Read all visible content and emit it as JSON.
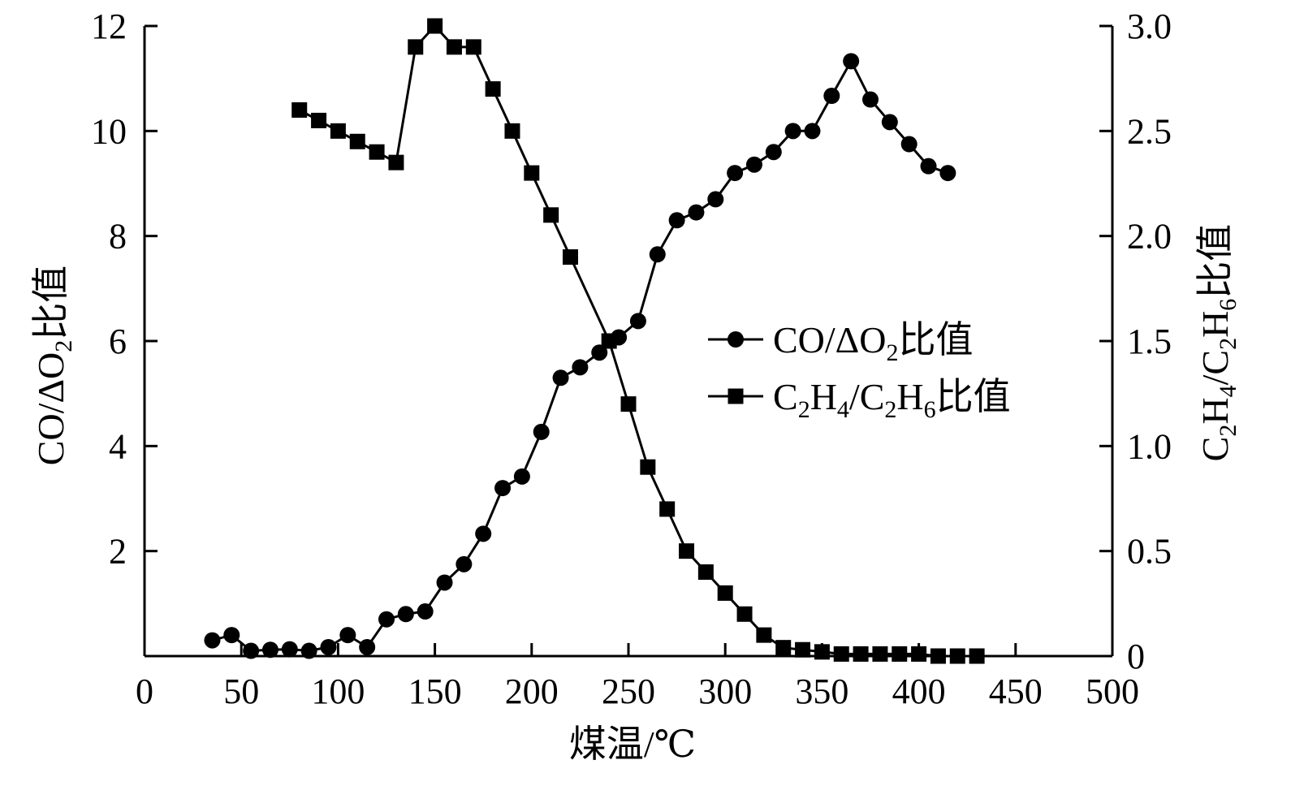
{
  "chart_data": {
    "type": "line",
    "xlabel": "煤温/℃",
    "ylabel_left": {
      "main": "CO/ΔO",
      "sub": "2",
      "tail": "比值"
    },
    "ylabel_right": {
      "parts": [
        [
          "C",
          ""
        ],
        [
          "2",
          "sub"
        ],
        [
          "H",
          ""
        ],
        [
          "4",
          "sub"
        ],
        [
          "/C",
          ""
        ],
        [
          "2",
          "sub"
        ],
        [
          "H",
          ""
        ],
        [
          "6",
          "sub"
        ],
        [
          "比值",
          ""
        ]
      ]
    },
    "xlim": [
      0,
      500
    ],
    "ylim_left": [
      0,
      12
    ],
    "ylim_right": [
      0,
      3.0
    ],
    "x_ticks": [
      "0",
      "50",
      "100",
      "150",
      "200",
      "250",
      "300",
      "350",
      "400",
      "450",
      "500"
    ],
    "y_ticks_left": [
      "2",
      "4",
      "6",
      "8",
      "10",
      "12"
    ],
    "y_ticks_right": [
      "0",
      "0.5",
      "1.0",
      "1.5",
      "2.0",
      "2.5",
      "3.0"
    ],
    "grid": false,
    "legend_position": "center-right",
    "series": [
      {
        "name": "CO/ΔO2比值",
        "legend_parts": [
          [
            "CO/ΔO",
            ""
          ],
          [
            "2",
            "sub"
          ],
          [
            "比值",
            ""
          ]
        ],
        "axis": "left",
        "marker": "circle",
        "x": [
          35,
          45,
          55,
          65,
          75,
          85,
          95,
          105,
          115,
          125,
          135,
          145,
          155,
          165,
          175,
          185,
          195,
          205,
          215,
          225,
          235,
          245,
          255,
          265,
          275,
          285,
          295,
          305,
          315,
          325,
          335,
          345,
          355,
          365,
          375,
          385,
          395,
          405,
          415
        ],
        "values": [
          0.3,
          0.4,
          0.1,
          0.12,
          0.13,
          0.1,
          0.17,
          0.4,
          0.17,
          0.7,
          0.8,
          0.85,
          1.4,
          1.75,
          2.33,
          3.2,
          3.42,
          4.27,
          5.3,
          5.5,
          5.78,
          6.07,
          6.38,
          7.65,
          8.3,
          8.45,
          8.7,
          9.2,
          9.36,
          9.6,
          10.0,
          10.0,
          10.67,
          11.33,
          10.6,
          10.17,
          9.75,
          9.33,
          9.2
        ]
      },
      {
        "name": "C2H4/C2H6比值",
        "legend_parts": [
          [
            "C",
            ""
          ],
          [
            "2",
            "sub"
          ],
          [
            "H",
            ""
          ],
          [
            "4",
            "sub"
          ],
          [
            "/C",
            ""
          ],
          [
            "2",
            "sub"
          ],
          [
            "H",
            ""
          ],
          [
            "6",
            "sub"
          ],
          [
            "比值",
            ""
          ]
        ],
        "axis": "right",
        "marker": "square",
        "x": [
          80,
          90,
          100,
          110,
          120,
          130,
          140,
          150,
          160,
          170,
          180,
          190,
          200,
          210,
          220,
          230,
          240,
          250,
          260,
          270,
          280,
          290,
          300,
          310,
          320,
          330,
          340,
          350,
          360,
          370,
          380,
          390,
          400,
          410,
          420,
          430
        ],
        "values": [
          2.6,
          2.55,
          2.5,
          2.45,
          2.4,
          2.35,
          2.9,
          3.0,
          2.9,
          2.9,
          2.7,
          2.5,
          2.3,
          2.1,
          1.9,
          null,
          1.5,
          1.2,
          0.9,
          0.7,
          0.5,
          0.4,
          0.3,
          0.2,
          0.1,
          0.04,
          0.03,
          0.02,
          0.01,
          0.01,
          0.01,
          0.01,
          0.01,
          0.0,
          0.0,
          0.0
        ]
      }
    ]
  }
}
